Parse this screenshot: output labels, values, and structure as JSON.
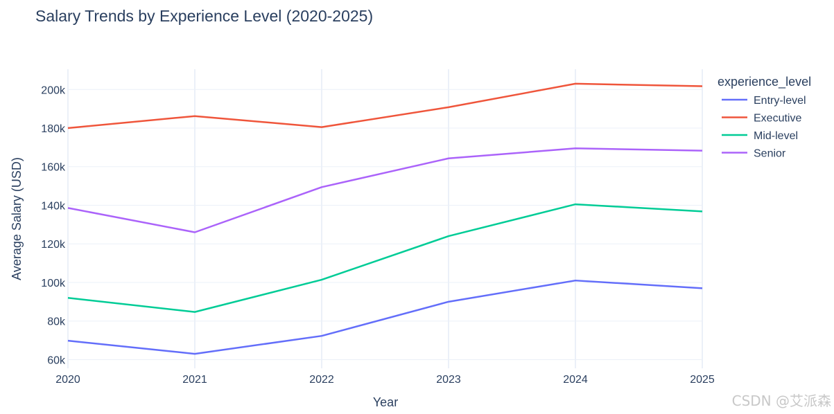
{
  "chart_data": {
    "type": "line",
    "title": "Salary Trends by Experience Level (2020-2025)",
    "xlabel": "Year",
    "ylabel": "Average Salary (USD)",
    "x": [
      2020,
      2021,
      2022,
      2023,
      2024,
      2025
    ],
    "x_tick_labels": [
      "2020",
      "2021",
      "2022",
      "2023",
      "2024",
      "2025"
    ],
    "y_ticks": [
      60000,
      80000,
      100000,
      120000,
      140000,
      160000,
      180000,
      200000
    ],
    "y_tick_labels": [
      "60k",
      "80k",
      "100k",
      "120k",
      "140k",
      "160k",
      "180k",
      "200k"
    ],
    "xlim": [
      2020,
      2025
    ],
    "ylim": [
      55500,
      210500
    ],
    "grid": true,
    "legend_title": "experience_level",
    "legend_position": "top-right",
    "series": [
      {
        "name": "Entry-level",
        "color": "#636efa",
        "values": [
          69800,
          63000,
          72300,
          90000,
          101000,
          97000
        ]
      },
      {
        "name": "Executive",
        "color": "#ef553b",
        "values": [
          180000,
          186200,
          180500,
          190800,
          203000,
          201700
        ]
      },
      {
        "name": "Mid-level",
        "color": "#00cc96",
        "values": [
          92000,
          84700,
          101400,
          124000,
          140500,
          136800
        ]
      },
      {
        "name": "Senior",
        "color": "#ab63fa",
        "values": [
          138600,
          126000,
          149400,
          164300,
          169500,
          168300
        ]
      }
    ]
  },
  "watermark": "CSDN @艾派森"
}
